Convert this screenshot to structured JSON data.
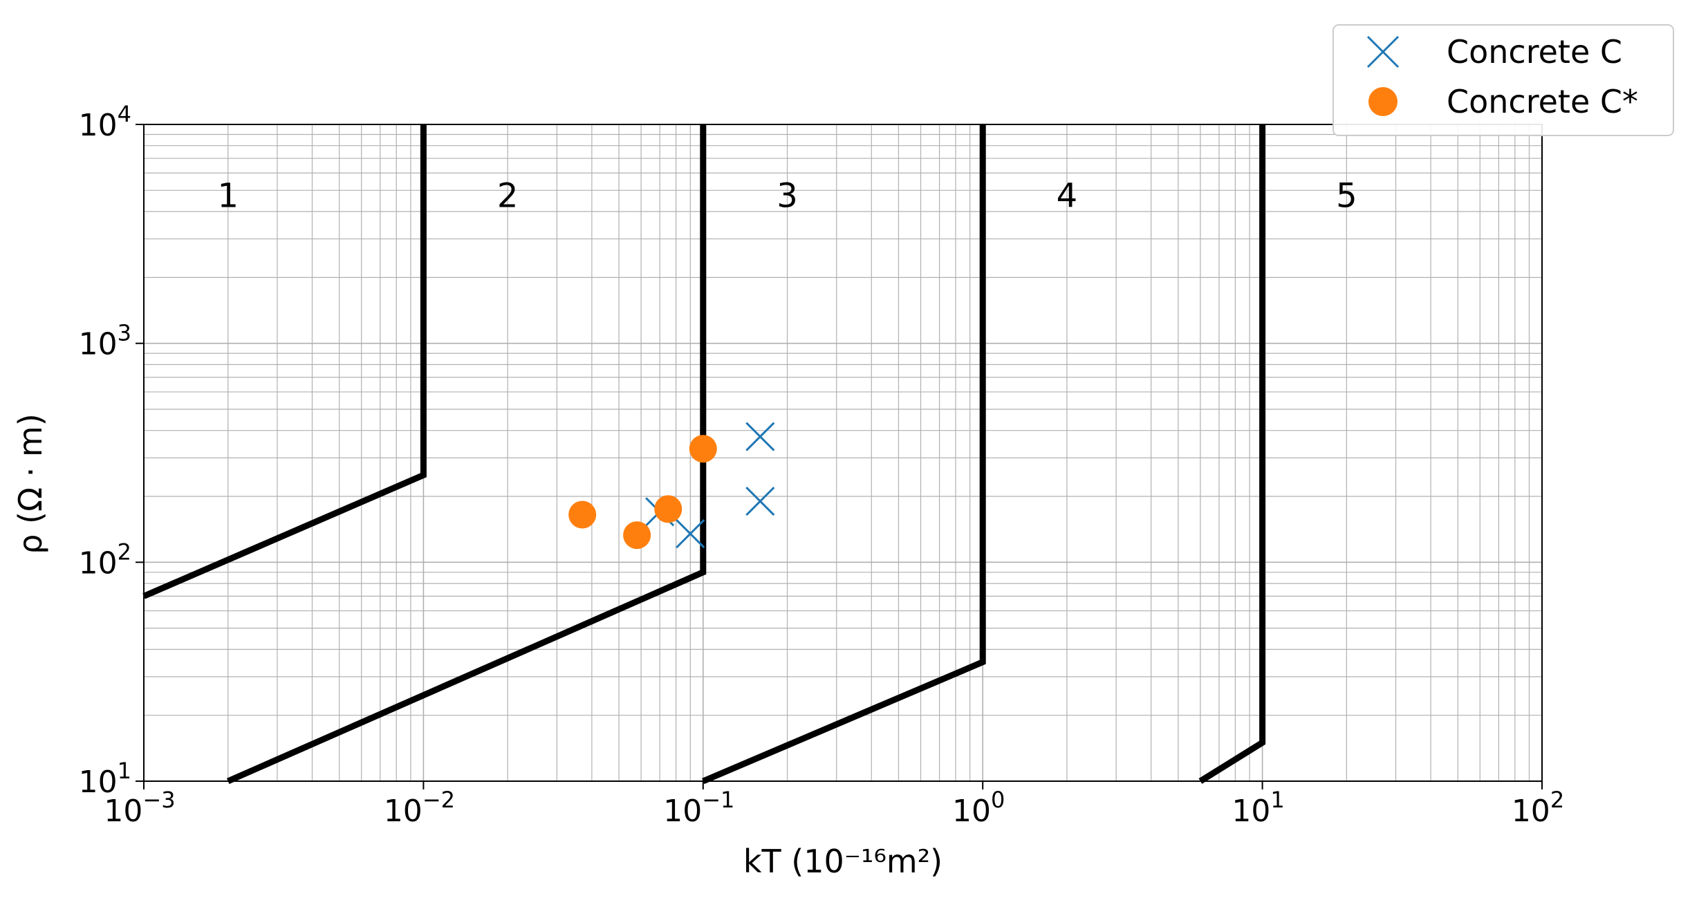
{
  "chart_data": {
    "type": "scatter",
    "title": "",
    "xlabel": "kT (10⁻¹⁶m²)",
    "ylabel": "ρ (Ω · m)",
    "xscale": "log",
    "yscale": "log",
    "xlim": [
      0.001,
      100
    ],
    "ylim": [
      10,
      10000
    ],
    "grid": true,
    "legend_position": "top-right",
    "x_ticks": [
      {
        "value": 0.001,
        "base": "10",
        "exp": "−3"
      },
      {
        "value": 0.01,
        "base": "10",
        "exp": "−2"
      },
      {
        "value": 0.1,
        "base": "10",
        "exp": "−1"
      },
      {
        "value": 1,
        "base": "10",
        "exp": "0"
      },
      {
        "value": 10,
        "base": "10",
        "exp": "1"
      },
      {
        "value": 100,
        "base": "10",
        "exp": "2"
      }
    ],
    "y_ticks": [
      {
        "value": 10,
        "base": "10",
        "exp": "1"
      },
      {
        "value": 100,
        "base": "10",
        "exp": "2"
      },
      {
        "value": 1000,
        "base": "10",
        "exp": "3"
      },
      {
        "value": 10000,
        "base": "10",
        "exp": "4"
      }
    ],
    "region_labels": [
      {
        "text": "1",
        "x": 0.002,
        "y": 5000
      },
      {
        "text": "2",
        "x": 0.02,
        "y": 5000
      },
      {
        "text": "3",
        "x": 0.2,
        "y": 5000
      },
      {
        "text": "4",
        "x": 2,
        "y": 5000
      },
      {
        "text": "5",
        "x": 20,
        "y": 5000
      }
    ],
    "boundaries": [
      {
        "points": [
          [
            0.001,
            70
          ],
          [
            0.01,
            250
          ],
          [
            0.01,
            10000
          ]
        ]
      },
      {
        "points": [
          [
            0.002,
            10
          ],
          [
            0.1,
            90
          ],
          [
            0.1,
            10000
          ]
        ]
      },
      {
        "points": [
          [
            0.1,
            10
          ],
          [
            1,
            35
          ],
          [
            1,
            10000
          ]
        ]
      },
      {
        "points": [
          [
            6,
            10
          ],
          [
            10,
            15
          ],
          [
            10,
            10000
          ]
        ]
      }
    ],
    "series": [
      {
        "name": "Concrete C",
        "marker": "x",
        "color": "#1f77b4",
        "points": [
          [
            0.07,
            170
          ],
          [
            0.09,
            135
          ],
          [
            0.16,
            190
          ],
          [
            0.16,
            375
          ]
        ]
      },
      {
        "name": "Concrete C*",
        "marker": "o",
        "color": "#ff7f0e",
        "points": [
          [
            0.037,
            165
          ],
          [
            0.058,
            133
          ],
          [
            0.075,
            175
          ],
          [
            0.1,
            330
          ]
        ]
      }
    ]
  }
}
